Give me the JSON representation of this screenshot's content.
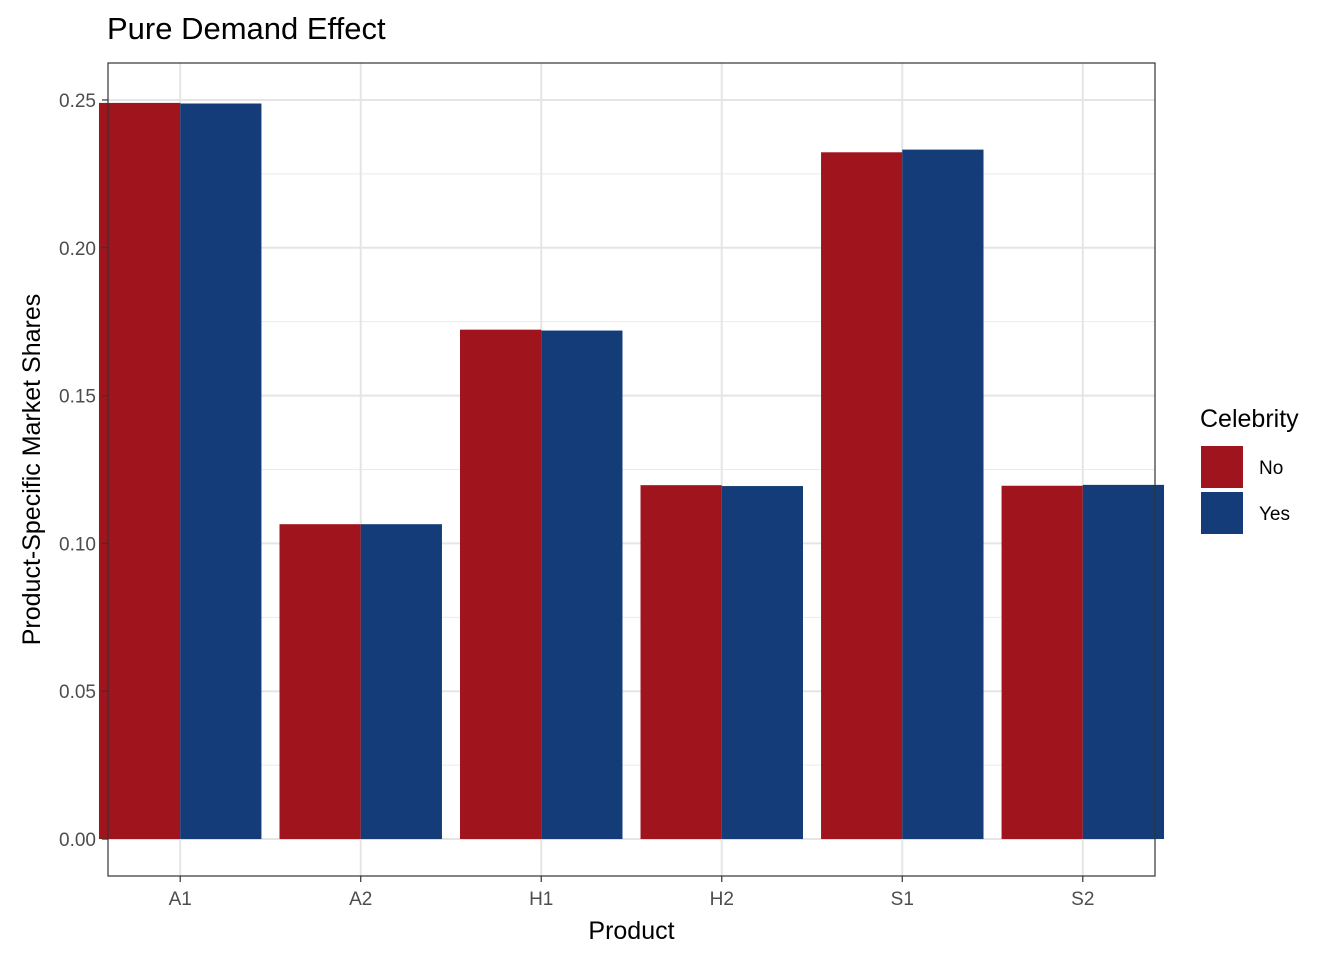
{
  "chart_data": {
    "type": "bar",
    "title": "Pure Demand Effect",
    "xlabel": "Product",
    "ylabel": "Product-Specific Market Shares",
    "categories": [
      "A1",
      "A2",
      "H1",
      "H2",
      "S1",
      "S2"
    ],
    "series": [
      {
        "name": "No",
        "color": "#a0141d",
        "values": [
          0.249,
          0.1065,
          0.1723,
          0.1197,
          0.2323,
          0.1195
        ]
      },
      {
        "name": "Yes",
        "color": "#133c78",
        "values": [
          0.2488,
          0.1065,
          0.172,
          0.1194,
          0.2332,
          0.1198
        ]
      }
    ],
    "ylim": [
      -0.0125,
      0.2625
    ],
    "yticks": [
      0.0,
      0.05,
      0.1,
      0.15,
      0.2,
      0.25
    ],
    "ytick_labels": [
      "0.00",
      "0.05",
      "0.10",
      "0.15",
      "0.20",
      "0.25"
    ],
    "grid": true,
    "legend": {
      "title": "Celebrity",
      "position": "right"
    }
  }
}
